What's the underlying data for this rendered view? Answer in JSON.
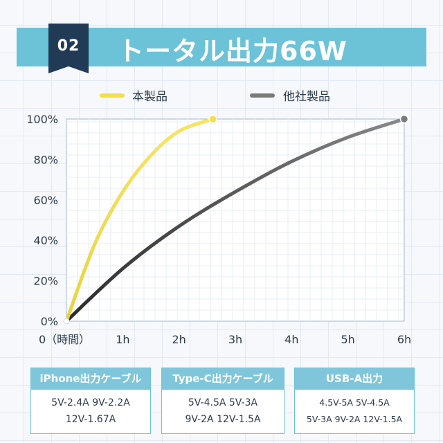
{
  "badge": "02",
  "title": "トータル出力66W",
  "colors": {
    "banner": "#6cc3d8",
    "badge": "#213a55",
    "this_product": "#f3df4b",
    "other_product": "#7a7a7a"
  },
  "chart_data": {
    "type": "line",
    "title": "",
    "xlabel": "",
    "ylabel": "",
    "x_ticks": [
      "0（時間）",
      "1h",
      "2h",
      "3h",
      "4h",
      "5h",
      "6h"
    ],
    "y_ticks": [
      "0%",
      "20%",
      "40%",
      "60%",
      "80%",
      "100%"
    ],
    "xlim": [
      0,
      6
    ],
    "ylim": [
      0,
      100
    ],
    "grid": true,
    "legend_position": "top",
    "series": [
      {
        "name": "本製品",
        "color": "#f3df4b",
        "points": [
          [
            0,
            0
          ],
          [
            0.5,
            38
          ],
          [
            1,
            64
          ],
          [
            1.5,
            82
          ],
          [
            2,
            94
          ],
          [
            2.6,
            100
          ]
        ]
      },
      {
        "name": "他社製品",
        "color": "#7a7a7a",
        "points": [
          [
            0,
            0
          ],
          [
            1,
            26
          ],
          [
            2,
            47
          ],
          [
            3,
            64
          ],
          [
            4,
            79
          ],
          [
            5,
            91
          ],
          [
            6,
            100
          ]
        ]
      }
    ]
  },
  "legend": {
    "this_product": "本製品",
    "other_product": "他社製品"
  },
  "tables": [
    {
      "header": "iPhone出力ケーブル",
      "rows": [
        "5V-2.4A 9V-2.2A",
        "12V-1.67A"
      ]
    },
    {
      "header": "Type-C出力ケーブル",
      "rows": [
        "5V-4.5A 5V-3A",
        "9V-2A 12V-1.5A"
      ]
    },
    {
      "header": "USB-A出力",
      "rows": [
        "4.5V-5A 5V-4.5A",
        "5V-3A 9V-2A 12V-1.5A"
      ]
    }
  ]
}
